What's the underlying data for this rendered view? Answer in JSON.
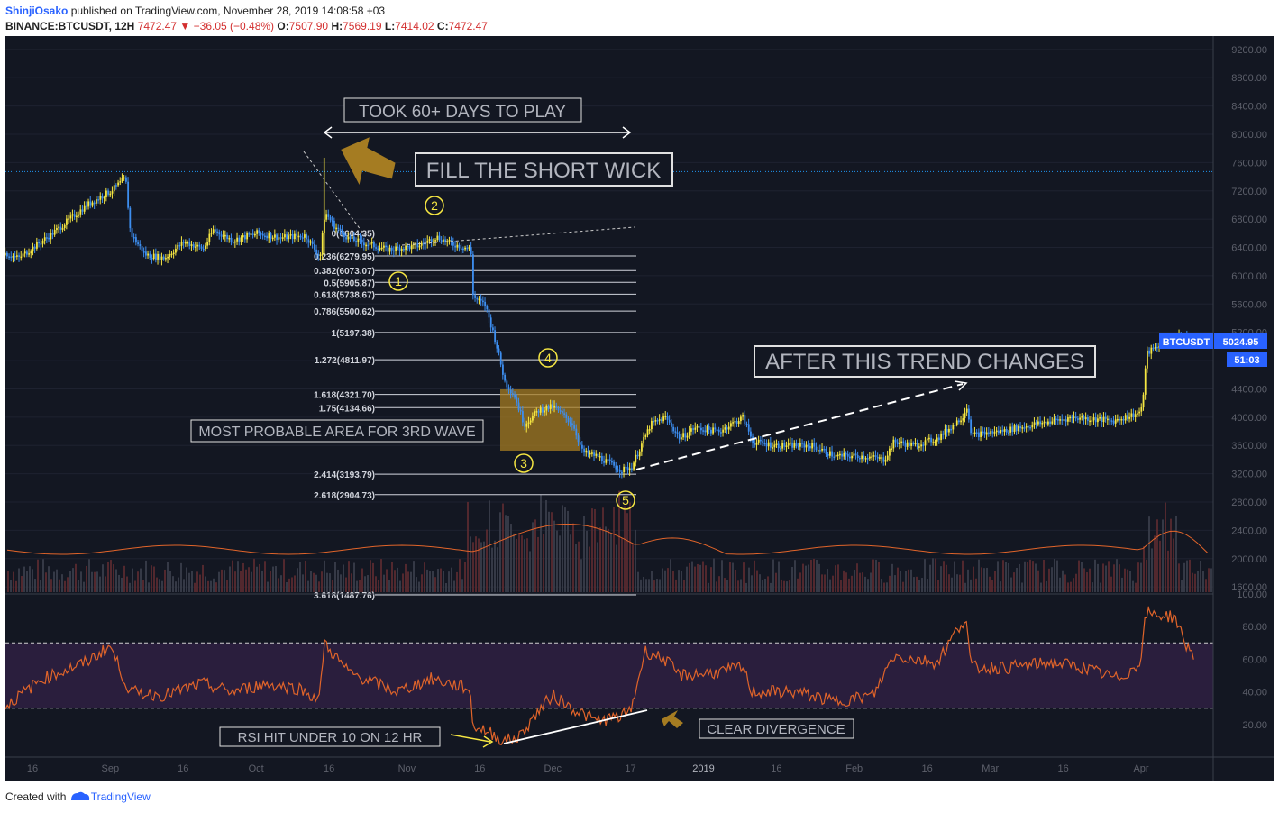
{
  "header": {
    "author": "ShinjiOsako",
    "published": "published on TradingView.com, November 28, 2019 14:08:58 +03",
    "symbol": "BINANCE:BTCUSDT, 12H",
    "last": "7472.47",
    "change": "▼ −36.05 (−0.48%)",
    "o_label": "O:",
    "o": "7507.90",
    "h_label": "H:",
    "h": "7569.19",
    "l_label": "L:",
    "l": "7414.02",
    "c_label": "C:",
    "c": "7472.47"
  },
  "footer": {
    "created": "Created with",
    "brand": "TradingView"
  },
  "colors": {
    "background": "#131722",
    "up": "#f5e642",
    "down": "#3d8ef0",
    "rsi_line": "#e0642a",
    "rsi_band": "#2a1e3d",
    "annotation": "#a57c22"
  },
  "chart_data": [
    {
      "type": "line",
      "title": "BINANCE:BTCUSDT, 12H",
      "x_ticks": [
        "16",
        "Sep",
        "16",
        "Oct",
        "16",
        "Nov",
        "16",
        "Dec",
        "17",
        "2019",
        "16",
        "Feb",
        "16",
        "Mar",
        "16",
        "Apr"
      ],
      "ylim": [
        1500,
        9300
      ],
      "y_ticks": [
        "9200.00",
        "8800.00",
        "8400.00",
        "8000.00",
        "7600.00",
        "7200.00",
        "6800.00",
        "6400.00",
        "6000.00",
        "5600.00",
        "5200.00",
        "4800.00",
        "4400.00",
        "4000.00",
        "3600.00",
        "3200.00",
        "2800.00",
        "2400.00",
        "2000.00",
        "1600.00"
      ],
      "price_path": [
        [
          "Aug 9",
          6350
        ],
        [
          "Aug 13",
          6250
        ],
        [
          "Aug 20",
          6600
        ],
        [
          "Aug 27",
          7000
        ],
        [
          "Sep 1",
          7200
        ],
        [
          "Sep 4",
          7380
        ],
        [
          "Sep 5",
          6600
        ],
        [
          "Sep 8",
          6300
        ],
        [
          "Sep 12",
          6250
        ],
        [
          "Sep 16",
          6480
        ],
        [
          "Sep 20",
          6380
        ],
        [
          "Sep 22",
          6650
        ],
        [
          "Sep 26",
          6500
        ],
        [
          "Oct 1",
          6600
        ],
        [
          "Oct 6",
          6540
        ],
        [
          "Oct 11",
          6570
        ],
        [
          "Oct 14",
          6260
        ],
        [
          "Oct 15",
          6900
        ],
        [
          "Oct 17",
          6700
        ],
        [
          "Oct 20",
          6520
        ],
        [
          "Oct 28",
          6370
        ],
        [
          "Nov 3",
          6420
        ],
        [
          "Nov 7",
          6550
        ],
        [
          "Nov 10",
          6450
        ],
        [
          "Nov 14",
          6380
        ],
        [
          "Nov 14.5",
          5700
        ],
        [
          "Nov 17",
          5580
        ],
        [
          "Nov 19",
          5100
        ],
        [
          "Nov 21",
          4500
        ],
        [
          "Nov 23",
          4300
        ],
        [
          "Nov 25",
          3900
        ],
        [
          "Nov 28",
          4100
        ],
        [
          "Dec 1",
          4150
        ],
        [
          "Dec 5",
          3900
        ],
        [
          "Dec 7",
          3500
        ],
        [
          "Dec 10",
          3450
        ],
        [
          "Dec 15",
          3250
        ],
        [
          "Dec 17",
          3290
        ],
        [
          "Dec 21",
          3900
        ],
        [
          "Dec 24",
          4000
        ],
        [
          "Dec 27",
          3700
        ],
        [
          "Dec 30",
          3850
        ],
        [
          "Jan 4",
          3800
        ],
        [
          "Jan 9",
          4000
        ],
        [
          "Jan 11",
          3650
        ],
        [
          "Jan 16",
          3600
        ],
        [
          "Jan 23",
          3600
        ],
        [
          "Jan 28",
          3450
        ],
        [
          "Feb 3",
          3450
        ],
        [
          "Feb 7",
          3400
        ],
        [
          "Feb 9",
          3650
        ],
        [
          "Feb 13",
          3600
        ],
        [
          "Feb 18",
          3700
        ],
        [
          "Feb 23",
          4000
        ],
        [
          "Feb 24",
          4150
        ],
        [
          "Feb 25",
          3750
        ],
        [
          "Mar 3",
          3800
        ],
        [
          "Mar 10",
          3900
        ],
        [
          "Mar 18",
          4000
        ],
        [
          "Mar 26",
          3950
        ],
        [
          "Mar 31",
          4050
        ],
        [
          "Apr 1",
          4100
        ],
        [
          "Apr 2",
          4900
        ],
        [
          "Apr 5",
          5050
        ],
        [
          "Apr 10",
          5150
        ],
        [
          "Apr 12",
          5020
        ]
      ],
      "price_scale_labels": [
        {
          "text": "BTCUSDT",
          "color": "#2962ff"
        },
        {
          "text": "5024.95",
          "color": "#2962ff"
        },
        {
          "text": "51:03",
          "color": "#2962ff"
        }
      ],
      "fib_levels": [
        {
          "label": "0(6604.35)",
          "value": 6604.35
        },
        {
          "label": "0.236(6279.95)",
          "value": 6279.95
        },
        {
          "label": "0.382(6073.07)",
          "value": 6073.07
        },
        {
          "label": "0.5(5905.87)",
          "value": 5905.87
        },
        {
          "label": "0.618(5738.67)",
          "value": 5738.67
        },
        {
          "label": "0.786(5500.62)",
          "value": 5500.62
        },
        {
          "label": "1(5197.38)",
          "value": 5197.38
        },
        {
          "label": "1.272(4811.97)",
          "value": 4811.97
        },
        {
          "label": "1.618(4321.70)",
          "value": 4321.7
        },
        {
          "label": "1.75(4134.66)",
          "value": 4134.66
        },
        {
          "label": "2.414(3193.79)",
          "value": 3193.79
        },
        {
          "label": "2.618(2904.73)",
          "value": 2904.73
        },
        {
          "label": "3.618(1487.76)",
          "value": 1487.76
        }
      ],
      "horizontal_line": 7472.47,
      "wave_labels": [
        "1",
        "2",
        "3",
        "4",
        "5"
      ],
      "annotations": [
        "TOOK 60+ DAYS TO PLAY",
        "FILL THE SHORT WICK",
        "MOST PROBABLE AREA FOR 3RD WAVE",
        "AFTER THIS TREND CHANGES"
      ]
    },
    {
      "type": "line",
      "title": "RSI",
      "ylim": [
        0,
        100
      ],
      "y_ticks": [
        "100.00",
        "80.00",
        "60.00",
        "40.00",
        "20.00"
      ],
      "band": [
        30,
        70
      ],
      "rsi_path": [
        [
          "Aug 9",
          28
        ],
        [
          "Aug 18",
          48
        ],
        [
          "Aug 27",
          58
        ],
        [
          "Sep 1",
          68
        ],
        [
          "Sep 5",
          40
        ],
        [
          "Sep 12",
          38
        ],
        [
          "Sep 20",
          45
        ],
        [
          "Sep 26",
          40
        ],
        [
          "Oct 3",
          45
        ],
        [
          "Oct 10",
          42
        ],
        [
          "Oct 14",
          35
        ],
        [
          "Oct 15",
          70
        ],
        [
          "Oct 20",
          52
        ],
        [
          "Oct 30",
          40
        ],
        [
          "Nov 6",
          48
        ],
        [
          "Nov 14",
          42
        ],
        [
          "Nov 14.5",
          20
        ],
        [
          "Nov 18",
          15
        ],
        [
          "Nov 21",
          10
        ],
        [
          "Nov 24",
          12
        ],
        [
          "Nov 28",
          28
        ],
        [
          "Dec 1",
          38
        ],
        [
          "Dec 5",
          30
        ],
        [
          "Dec 10",
          22
        ],
        [
          "Dec 15",
          25
        ],
        [
          "Dec 17",
          28
        ],
        [
          "Dec 20",
          65
        ],
        [
          "Dec 24",
          60
        ],
        [
          "Dec 27",
          50
        ],
        [
          "Jan 4",
          52
        ],
        [
          "Jan 9",
          55
        ],
        [
          "Jan 11",
          40
        ],
        [
          "Jan 20",
          40
        ],
        [
          "Jan 28",
          34
        ],
        [
          "Feb 5",
          38
        ],
        [
          "Feb 9",
          62
        ],
        [
          "Feb 18",
          58
        ],
        [
          "Feb 23",
          82
        ],
        [
          "Feb 24",
          85
        ],
        [
          "Feb 25",
          55
        ],
        [
          "Mar 5",
          55
        ],
        [
          "Mar 14",
          58
        ],
        [
          "Mar 20",
          55
        ],
        [
          "Mar 27",
          48
        ],
        [
          "Mar 31",
          55
        ],
        [
          "Apr 1",
          62
        ],
        [
          "Apr 2",
          88
        ],
        [
          "Apr 8",
          86
        ],
        [
          "Apr 10",
          70
        ],
        [
          "Apr 12",
          62
        ]
      ],
      "annotations": [
        "RSI HIT UNDER 10 ON 12 HR",
        "CLEAR DIVERGENCE"
      ]
    }
  ]
}
